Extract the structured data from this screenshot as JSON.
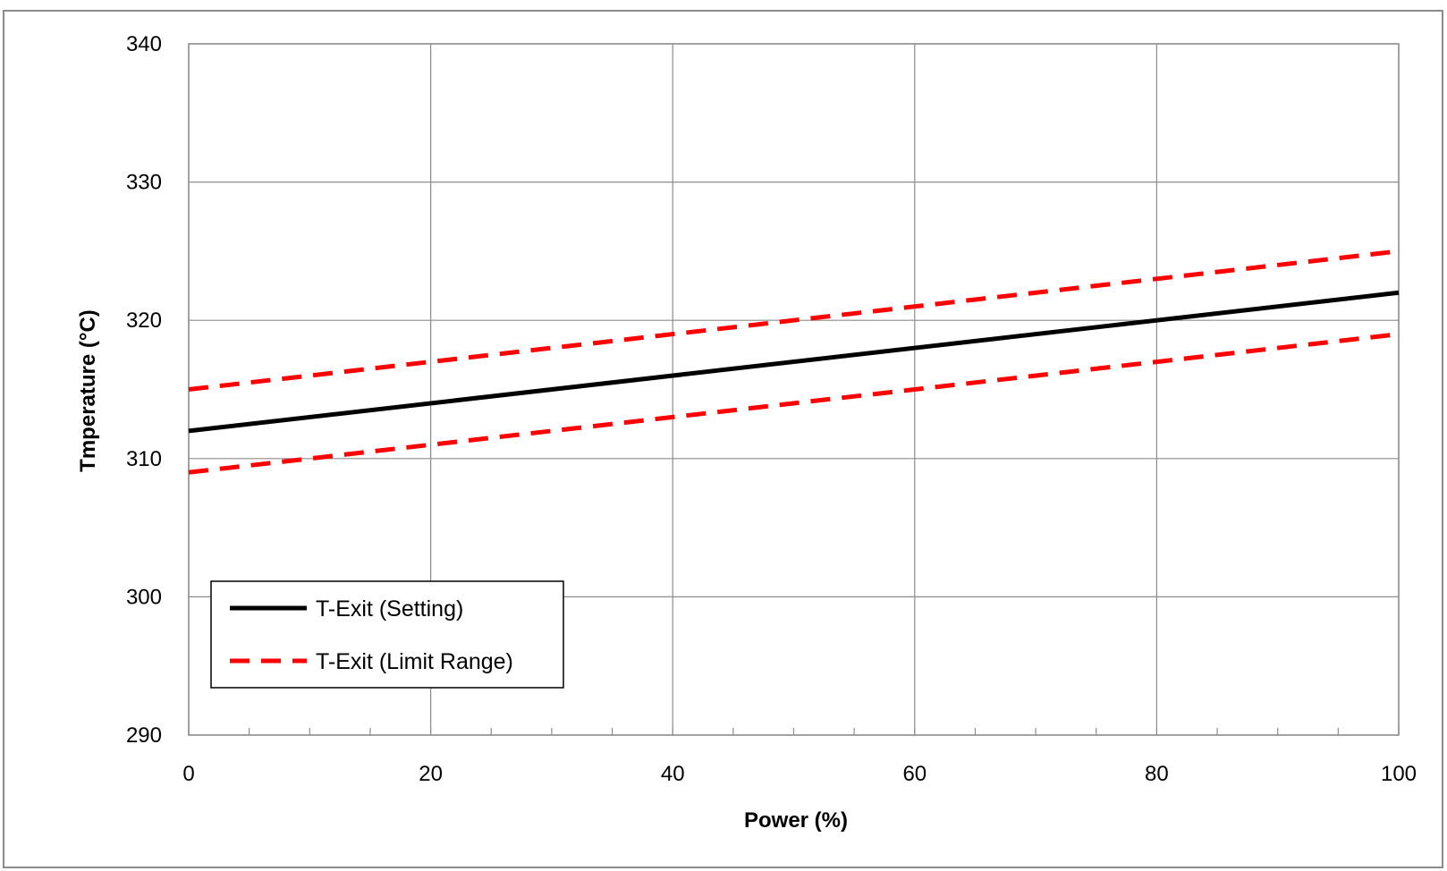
{
  "chart_data": {
    "type": "line",
    "title": "",
    "xlabel": "Power (%)",
    "ylabel": "Tmperature (°C)",
    "xlim": [
      0,
      100
    ],
    "ylim": [
      290,
      340
    ],
    "x_ticks": [
      0,
      20,
      40,
      60,
      80,
      100
    ],
    "y_ticks": [
      290,
      300,
      310,
      320,
      330,
      340
    ],
    "x_minor_step": 5,
    "grid": true,
    "legend_position": "bottom-left",
    "series": [
      {
        "name": "T-Exit (Setting)",
        "style": "solid",
        "color": "#000000",
        "x": [
          0,
          100
        ],
        "y": [
          312,
          322
        ]
      },
      {
        "name": "T-Exit (Limit Range)",
        "style": "dashed",
        "color": "#ff0000",
        "x": [
          0,
          100
        ],
        "y": [
          315,
          325
        ]
      },
      {
        "name": "",
        "style": "dashed",
        "color": "#ff0000",
        "x": [
          0,
          100
        ],
        "y": [
          309,
          319
        ]
      }
    ],
    "legend": [
      "T-Exit (Setting)",
      "T-Exit (Limit Range)"
    ]
  }
}
